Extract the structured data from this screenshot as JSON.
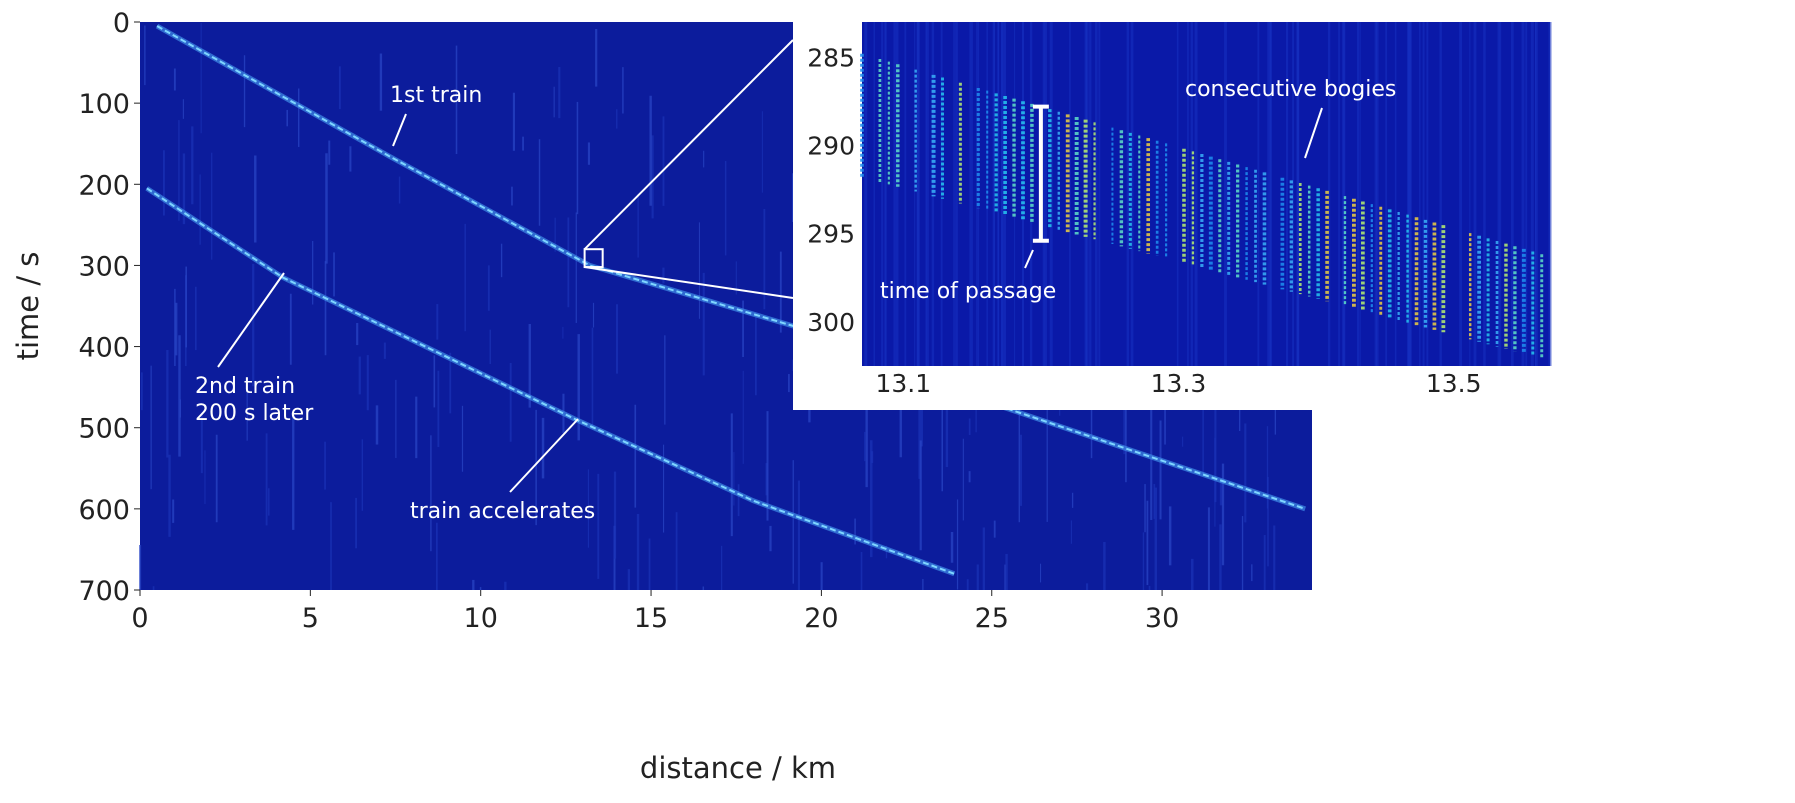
{
  "chart_data": [
    {
      "type": "heatmap",
      "title": "",
      "xlabel": "distance  / km",
      "ylabel": "time / s",
      "xlim": [
        0,
        34.4
      ],
      "ylim": [
        700,
        0
      ],
      "xticks": [
        "0",
        "5",
        "10",
        "15",
        "20",
        "25",
        "30"
      ],
      "xtick_values": [
        0,
        5,
        10,
        15,
        20,
        25,
        30
      ],
      "yticks": [
        "0",
        "100",
        "200",
        "300",
        "400",
        "500",
        "600",
        "700"
      ],
      "ytick_values": [
        0,
        100,
        200,
        300,
        400,
        500,
        600,
        700
      ],
      "series": [
        {
          "name": "1st train",
          "x": [
            0.5,
            7.3,
            13.2,
            20,
            25,
            34.2
          ],
          "y": [
            5,
            165,
            300,
            385,
            470,
            600
          ]
        },
        {
          "name": "2nd train",
          "x": [
            0.2,
            4.2,
            12.8,
            18,
            23.9
          ],
          "y": [
            205,
            315,
            490,
            590,
            680
          ]
        }
      ],
      "annotations": [
        {
          "text": "1st train",
          "x": 7.3,
          "y": 165
        },
        {
          "lines": [
            "2nd train",
            "200 s later"
          ],
          "x": 4.2,
          "y": 315
        },
        {
          "text": "train accelerates",
          "x": 12.8,
          "y": 490
        }
      ],
      "zoom_box": {
        "x": [
          13.05,
          13.58
        ],
        "y": [
          280,
          302
        ]
      },
      "colors": {
        "background": "#0c1c9c",
        "track": "#7fd6ff"
      }
    },
    {
      "type": "heatmap",
      "title": "",
      "xlim": [
        13.07,
        13.57
      ],
      "ylim": [
        302.5,
        283
      ],
      "xticks": [
        "13.1",
        "13.3",
        "13.5"
      ],
      "xtick_values": [
        13.1,
        13.3,
        13.5
      ],
      "yticks": [
        "285",
        "290",
        "295",
        "300"
      ],
      "ytick_values": [
        285,
        290,
        295,
        300
      ],
      "band": {
        "x": [
          13.07,
          13.57
        ],
        "top": [
          284.8,
          296.3
        ],
        "bottom": [
          291.8,
          302.2
        ]
      },
      "annotations": [
        {
          "text": "consecutive bogies",
          "x": 13.4,
          "y": 291
        },
        {
          "text": "time of passage",
          "x": 13.2,
          "y": 295.5
        }
      ],
      "passage_bar": {
        "x": 13.2,
        "y": [
          287.8,
          295.4
        ]
      }
    }
  ]
}
